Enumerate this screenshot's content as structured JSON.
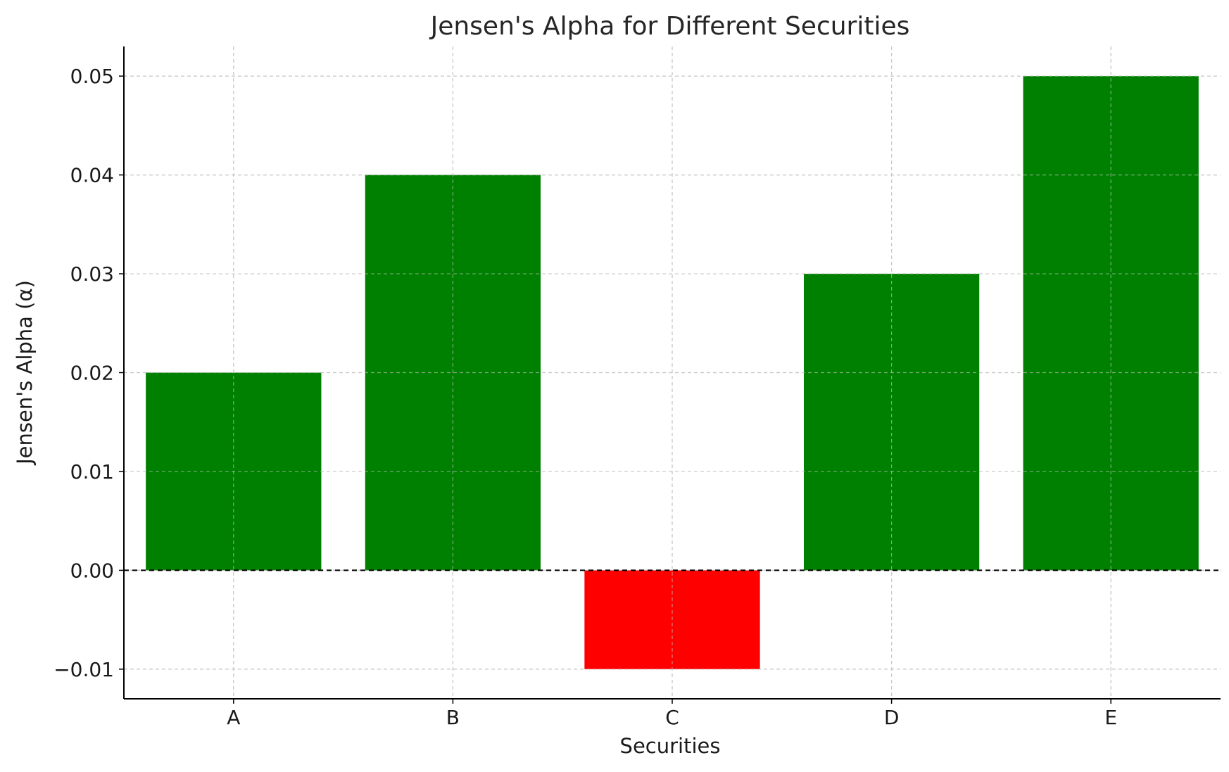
{
  "chart_data": {
    "type": "bar",
    "title": "Jensen's Alpha for Different Securities",
    "xlabel": "Securities",
    "ylabel": "Jensen's Alpha (α)",
    "categories": [
      "A",
      "B",
      "C",
      "D",
      "E"
    ],
    "values": [
      0.02,
      0.04,
      -0.01,
      0.03,
      0.05
    ],
    "colors": [
      "#008000",
      "#008000",
      "#ff0000",
      "#008000",
      "#008000"
    ],
    "positive_color": "#008000",
    "negative_color": "#ff0000",
    "ylim": [
      -0.013,
      0.053
    ],
    "yticks": [
      -0.01,
      0.0,
      0.01,
      0.02,
      0.03,
      0.04,
      0.05
    ],
    "ytick_labels": [
      "−0.01",
      "0.00",
      "0.01",
      "0.02",
      "0.03",
      "0.04",
      "0.05"
    ],
    "grid": true,
    "reference_line": {
      "y": 0,
      "style": "dashed",
      "color": "#000000"
    }
  }
}
